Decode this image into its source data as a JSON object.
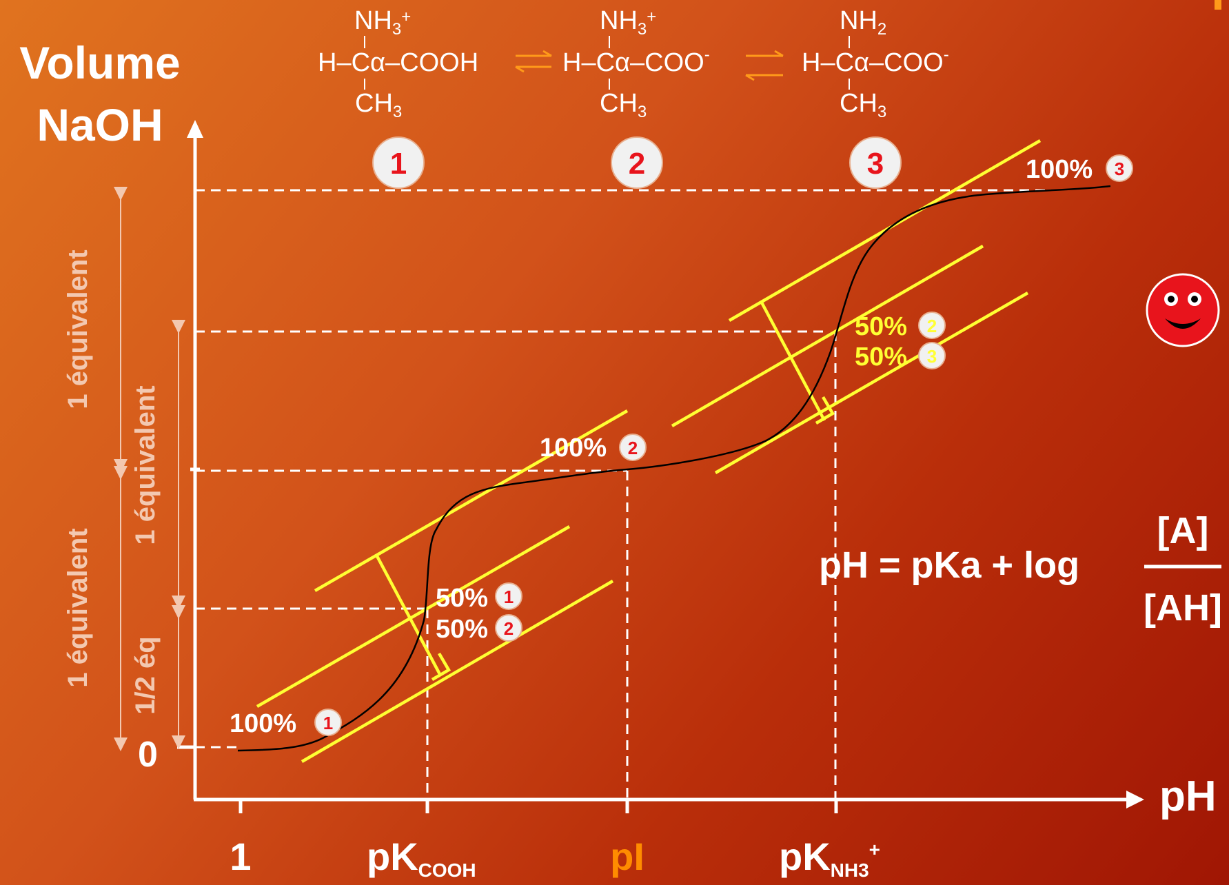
{
  "axes": {
    "y_title_line1": "Volume",
    "y_title_line2": "NaOH",
    "x_title": "pH",
    "y_zero": "0",
    "x_ticks": {
      "one": "1",
      "pk_main": "pK",
      "pk_cooh_sub": "COOH",
      "pi": "pI",
      "pk_nh3_sub": "NH3",
      "pk_nh3_sup": "+"
    }
  },
  "species": [
    {
      "id": "1",
      "top": "NH",
      "top_sub": "3",
      "top_sup": "+",
      "left": "H–C",
      "alpha": "α",
      "right": "–COOH",
      "bottom": "CH",
      "bottom_sub": "3"
    },
    {
      "id": "2",
      "top": "NH",
      "top_sub": "3",
      "top_sup": "+",
      "left": "H–C",
      "alpha": "α",
      "right": "–COO",
      "right_sup": "-",
      "bottom": "CH",
      "bottom_sub": "3"
    },
    {
      "id": "3",
      "top": "NH",
      "top_sub": "2",
      "left": "H–C",
      "alpha": "α",
      "right": "–COO",
      "right_sup": "-",
      "bottom": "CH",
      "bottom_sub": "3"
    }
  ],
  "annotations": {
    "pct100": "100%",
    "pct50": "50%",
    "badge_1": "1",
    "badge_2": "2",
    "badge_3": "3"
  },
  "brackets": {
    "one_equiv": "1 équivalent",
    "half_equiv": "1/2 éq"
  },
  "formula": {
    "lhs": "pH = pKa + log",
    "numerator": "[A]",
    "denominator": "[AH]"
  },
  "colors": {
    "background_start": "#e0731f",
    "background_end": "#a01604",
    "tangent_lines": "#ffff33",
    "pi_label": "#ff8c00",
    "badge_number": "#e8141c",
    "equilibrium_arrows": "#ff9a1a",
    "smiley": "#e8141c"
  },
  "icons": {
    "smiley": "smiley-face-icon"
  }
}
